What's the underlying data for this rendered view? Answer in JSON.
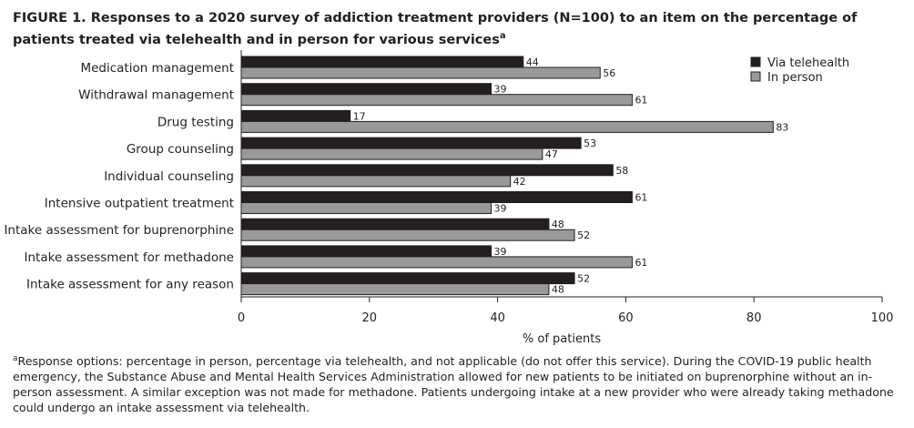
{
  "title": {
    "text": "FIGURE 1.  Responses to a 2020 survey of addiction treatment providers (N=100) to an item on the percentage of patients treated via telehealth and in person for various services",
    "marker": "a"
  },
  "footnote": {
    "marker": "a",
    "text": "Response options: percentage in person, percentage via telehealth, and not applicable (do not offer this service). During the COVID-19 public health emergency, the Substance Abuse and Mental Health Services Administration allowed for new patients to be initiated on buprenorphine without an in-person assessment. A similar exception was not made for methadone. Patients undergoing intake at a new provider who were already taking methadone could undergo an intake assessment via telehealth."
  },
  "chart_data": {
    "type": "bar",
    "orientation": "horizontal",
    "categories": [
      "Medication management",
      "Withdrawal management",
      "Drug testing",
      "Group counseling",
      "Individual counseling",
      "Intensive outpatient treatment",
      "Intake assessment for buprenorphine",
      "Intake assessment for methadone",
      "Intake assessment for any reason"
    ],
    "series": [
      {
        "name": "Via telehealth",
        "color": "#231f20",
        "values": [
          44,
          39,
          17,
          53,
          58,
          61,
          48,
          39,
          52
        ]
      },
      {
        "name": "In person",
        "color": "#999999",
        "values": [
          56,
          61,
          83,
          47,
          42,
          39,
          52,
          61,
          48
        ]
      }
    ],
    "xlabel": "% of patients",
    "xlim": [
      0,
      100
    ],
    "xticks": [
      0,
      20,
      40,
      60,
      80,
      100
    ],
    "grid": false,
    "legend": "top-right"
  }
}
